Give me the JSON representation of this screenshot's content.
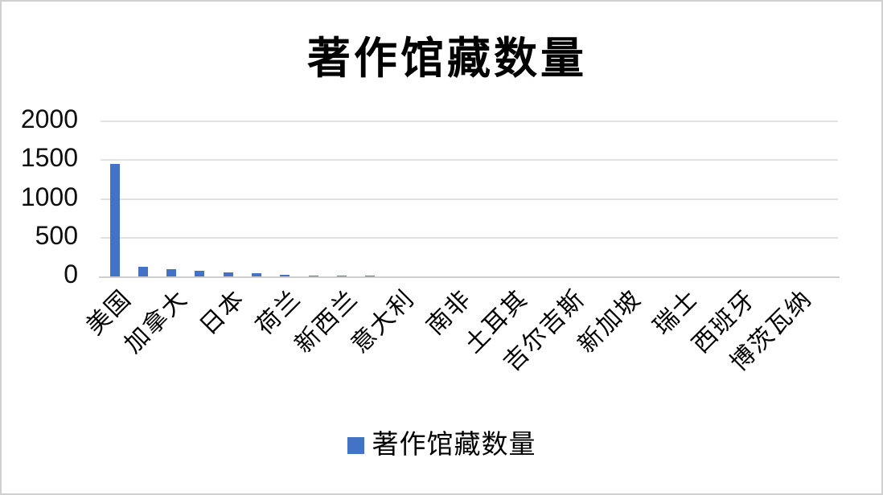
{
  "chart_title": "著作馆藏数量",
  "colors": {
    "bar": "#4472C4",
    "gridline": "#e2e2e2",
    "axis_line": "#cfcfcf",
    "text": "#000000",
    "frame_border": "#d0d0d0"
  },
  "legend": {
    "marker_icon": "square-icon",
    "marker_color": "#4472C4",
    "label": "著作馆藏数量",
    "position": "bottom"
  },
  "y_axis": {
    "tick_labels": [
      "2000",
      "1500",
      "1000",
      "500",
      "0"
    ]
  },
  "x_axis": {
    "tick_labels": [
      "美国",
      "加拿大",
      "日本",
      "荷兰",
      "新西兰",
      "意大利",
      "南非",
      "土耳其",
      "吉尔吉斯",
      "新加坡",
      "瑞士",
      "西班牙",
      "博茨瓦纳"
    ],
    "labels_rotated_degrees": 45,
    "label_interval_slots": 2
  },
  "chart_data": {
    "type": "bar",
    "title": "著作馆藏数量",
    "categories": [
      "美国",
      "加拿大",
      "日本",
      "荷兰",
      "新西兰",
      "意大利",
      "南非",
      "土耳其",
      "吉尔吉斯",
      "新加坡",
      "瑞士",
      "西班牙",
      "博茨瓦纳"
    ],
    "category_label_interval": 2,
    "slot_count": 26,
    "series": [
      {
        "name": "著作馆藏数量",
        "values": [
          1450,
          120,
          95,
          75,
          55,
          42,
          16,
          15,
          14,
          12,
          8,
          6,
          5,
          4,
          3,
          3,
          2,
          2,
          2,
          1,
          1,
          1,
          1,
          1,
          1,
          1
        ]
      }
    ],
    "labeled_category_values": {
      "美国": 1450,
      "加拿大": 95,
      "日本": 55,
      "荷兰": 16,
      "新西兰": 14,
      "意大利": 8,
      "南非": 5,
      "土耳其": 3,
      "吉尔吉斯": 2,
      "新加坡": 2,
      "瑞士": 1,
      "西班牙": 1,
      "博茨瓦纳": 1
    },
    "ylim": [
      0,
      2000
    ],
    "yticks": [
      0,
      500,
      1000,
      1500,
      2000
    ],
    "grid": "horizontal",
    "legend_position": "bottom",
    "bar_color": "#4472C4"
  }
}
